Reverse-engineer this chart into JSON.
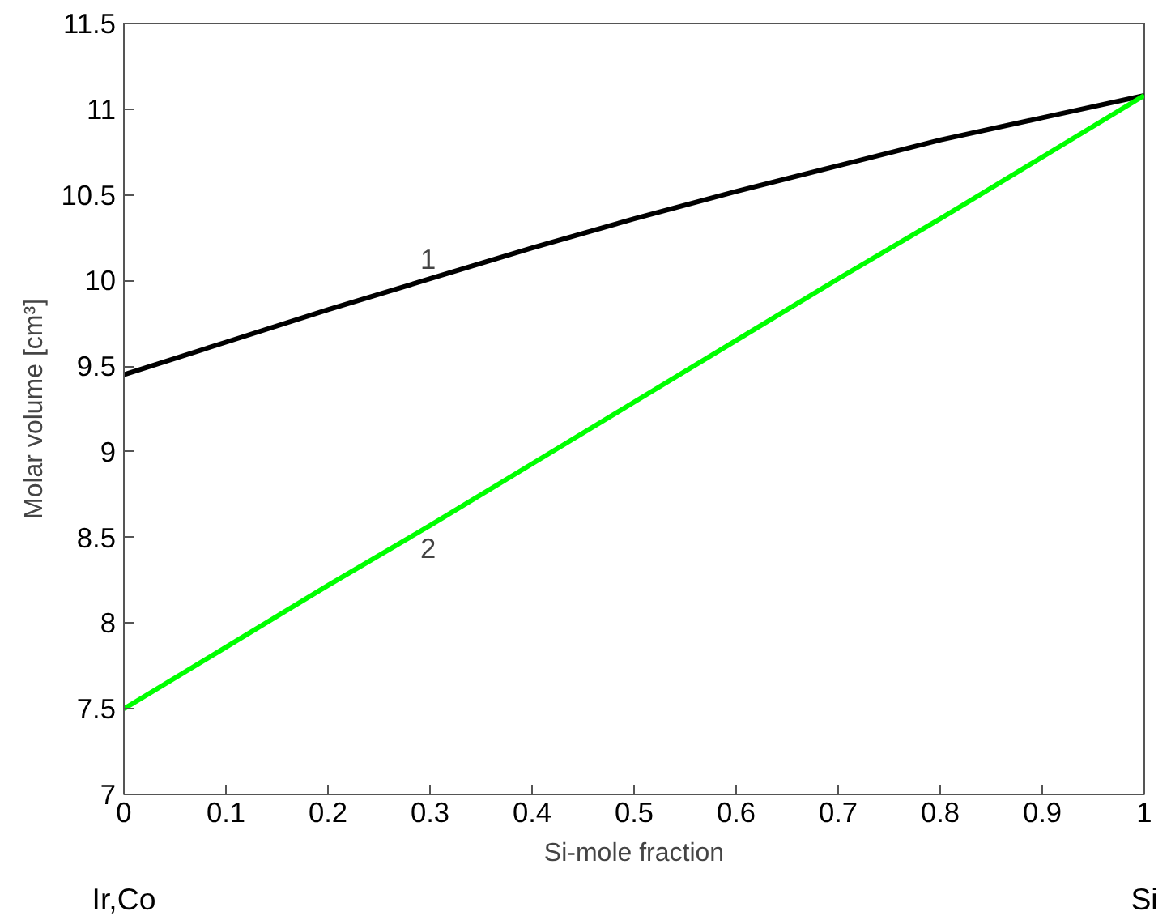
{
  "chart_data": {
    "type": "line",
    "xlabel": "Si-mole fraction",
    "ylabel": "Molar volume [cm³]",
    "x": [
      0,
      0.1,
      0.2,
      0.3,
      0.4,
      0.5,
      0.6,
      0.7,
      0.8,
      0.9,
      1
    ],
    "series": [
      {
        "color": "#000000",
        "values": [
          9.45,
          9.64,
          9.83,
          10.01,
          10.19,
          10.36,
          10.52,
          10.67,
          10.82,
          10.95,
          11.08
        ]
      },
      {
        "color": "#00ff00",
        "values": [
          7.5,
          7.86,
          8.22,
          8.57,
          8.93,
          9.29,
          9.65,
          10.01,
          10.36,
          10.72,
          11.08
        ]
      }
    ],
    "xlim": [
      0,
      1
    ],
    "ylim": [
      7,
      11.5
    ],
    "xticks": [
      0,
      0.1,
      0.2,
      0.3,
      0.4,
      0.5,
      0.6,
      0.7,
      0.8,
      0.9,
      1
    ],
    "yticks": [
      7,
      7.5,
      8,
      8.5,
      9,
      9.5,
      10,
      10.5,
      11,
      11.5
    ],
    "grid": false,
    "annotations": [
      {
        "text": "1",
        "x": 0.3,
        "y": 10.01
      },
      {
        "text": "2",
        "x": 0.3,
        "y": 8.57
      },
      "Ir,Co",
      "Si"
    ]
  }
}
